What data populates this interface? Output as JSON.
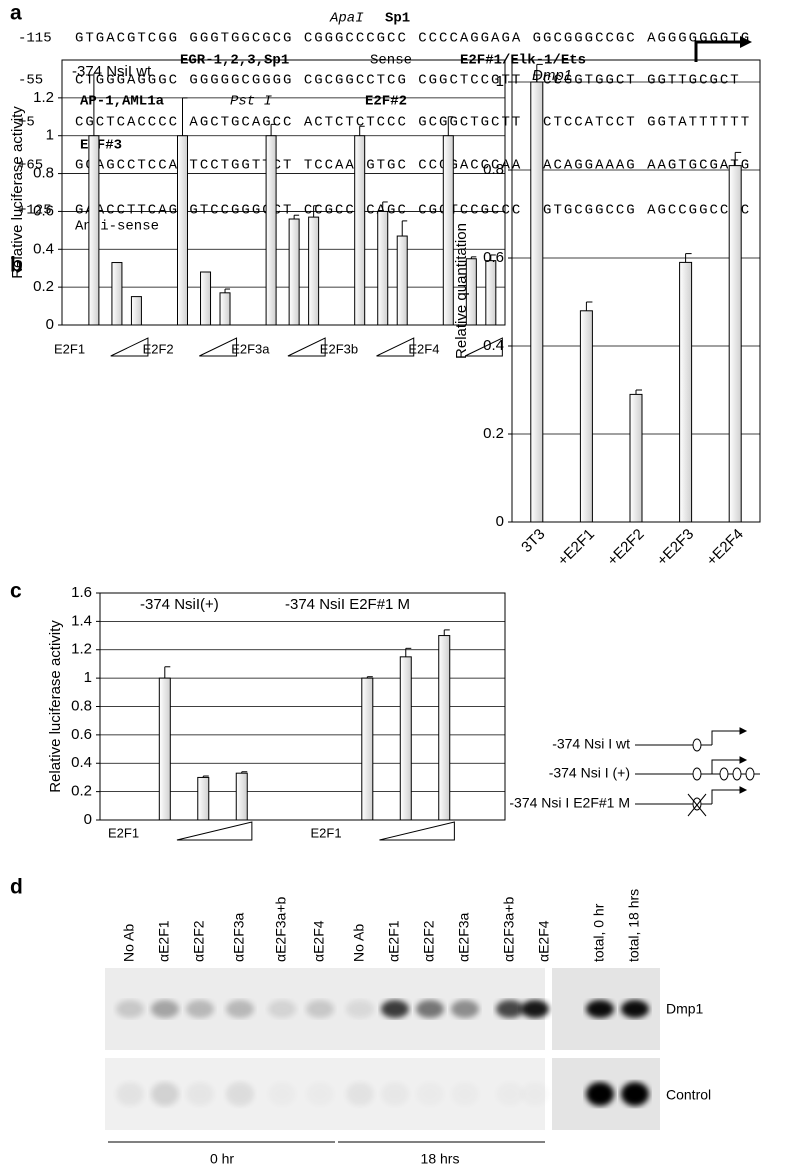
{
  "panel_labels": [
    "a",
    "b",
    "c",
    "d"
  ],
  "sequence": {
    "lines": [
      {
        "position": "-115",
        "text": "GTGACGTCGG GGGTGGCGCG CGGGCCCGCC CCCCAGGAGA GGCGGGCCGC AGGGGGGGTG"
      },
      {
        "position": "-55",
        "text": "CTGGGAGGGC GGGGGCGGGG CGCGGCCTCG CGGCTCCGTT TCCGGTGGCT GGTTGCGCT"
      },
      {
        "position": "+5",
        "text": "CGCTCACCCC AGCTGCAGCC ACTCTCTCCC GCGGCTGCTT CCTCCATCCT GGTATTTTTT"
      },
      {
        "position": "+65",
        "text": "GGAGCCTCCA TCCTGGTTCT TCCAAAGTGC CCGGACCCAA AACAGGAAAG AAGTGCGATG"
      },
      {
        "position": "+125",
        "text": "GAACCTTCAG GTCCGGGCCT CCGCCGCAGC CGCTCCGCCC AGTGCGGCCG AGCCGGCCCC"
      }
    ],
    "annotations": [
      "ApaI",
      "Sp1",
      "EGR-1,2,3,Sp1",
      "Sense",
      "E2F#1/Elk-1/Ets",
      "AP-1,AML1a",
      "Pst I",
      "E2F#2",
      "E2F#3",
      "Anti-sense"
    ]
  },
  "chart_data": [
    {
      "type": "grouped_bar",
      "annotations": [
        "-374 NsiI wt"
      ],
      "y_label": "Relative luciferase activity",
      "ylim": [
        0,
        1.4
      ],
      "yticks": [
        0,
        0.2,
        0.4,
        0.6,
        0.8,
        1,
        1.2
      ],
      "grid": true,
      "color": "#f2f2f2",
      "groups": [
        {
          "label": "E2F1",
          "values": [
            1,
            0.33,
            0.15
          ],
          "errors": [
            0.33,
            null,
            null
          ]
        },
        {
          "label": "E2F2",
          "values": [
            1,
            0.28,
            0.17
          ],
          "errors": [
            0.2,
            null,
            0.02
          ]
        },
        {
          "label": "E2F3a",
          "values": [
            1,
            0.56,
            0.57
          ],
          "errors": [
            0.06,
            0.02,
            0.06
          ]
        },
        {
          "label": "E2F3b",
          "values": [
            1,
            0.6,
            0.47
          ],
          "errors": [
            0.05,
            0.05,
            0.08
          ]
        },
        {
          "label": "E2F4",
          "values": [
            1,
            0.35,
            0.34
          ],
          "errors": [
            0.1,
            0.01,
            0.03
          ]
        }
      ]
    },
    {
      "type": "bar",
      "title": "Dmp1",
      "y_label": "Relative quantitation",
      "ylim": [
        0,
        1.05
      ],
      "yticks": [
        0,
        0.2,
        0.4,
        0.6,
        0.8,
        1
      ],
      "grid": true,
      "color": "#f2f2f2",
      "categories": [
        "3T3",
        "+E2F1",
        "+E2F2",
        "+E2F3",
        "+E2F4"
      ],
      "values": [
        1,
        0.48,
        0.29,
        0.59,
        0.81
      ],
      "errors": [
        0.04,
        0.02,
        0.01,
        0.02,
        0.03
      ]
    },
    {
      "type": "grouped_bar",
      "annotations": [
        "-374 NsiI(+)",
        "-374 NsiI E2F#1 M"
      ],
      "y_label": "Relative luciferase activity",
      "ylim": [
        0,
        1.6
      ],
      "yticks": [
        0,
        0.2,
        0.4,
        0.6,
        0.8,
        1,
        1.2,
        1.4,
        1.6
      ],
      "grid": true,
      "color": "#f2f2f2",
      "groups": [
        {
          "label": "E2F1",
          "values": [
            1,
            0.3,
            0.33
          ],
          "errors": [
            0.08,
            0.01,
            0.01
          ]
        },
        {
          "label": "E2F1",
          "values": [
            1,
            1.15,
            1.3
          ],
          "errors": [
            0.01,
            0.06,
            0.04
          ]
        }
      ]
    }
  ],
  "schematic": {
    "labels": [
      "-374 Nsi I wt",
      "-374 Nsi I (+)",
      "-374 Nsi I E2F#1 M"
    ]
  },
  "gel": {
    "lanes": [
      "No Ab",
      "αE2F1",
      "αE2F2",
      "αE2F3a",
      "αE2F3a+b",
      "αE2F4",
      "No Ab",
      "αE2F1",
      "αE2F2",
      "αE2F3a",
      "αE2F3a+b",
      "αE2F4",
      "total, 0 hr",
      "total, 18 hrs"
    ],
    "rows": [
      "Dmp1",
      "Control"
    ],
    "groups": [
      "0 hr",
      "18 hrs"
    ]
  }
}
